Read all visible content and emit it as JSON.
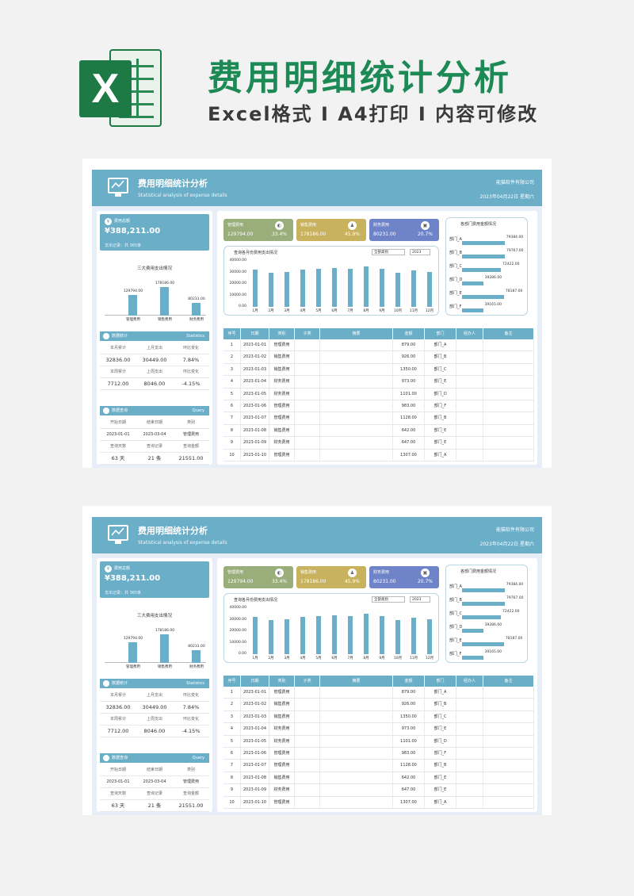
{
  "title": "费用明细统计分析",
  "subtitle": "Excel格式 I A4打印 I 内容可修改",
  "logo_text": "X",
  "sheet": {
    "title": "费用明细统计分析",
    "title_en": "Statistical analysis of expense details",
    "company": "能猫软件有限公司",
    "date": "2023年04月22日 星期六",
    "total": {
      "label": "费用总额",
      "value": "¥388,211.00",
      "note": "支出记录：共 365条"
    },
    "mini_chart": {
      "title": "三大费用支出情况",
      "chart_data": {
        "type": "bar",
        "categories": [
          "管理费用",
          "销售费用",
          "财务费用"
        ],
        "values": [
          129794.0,
          178186.0,
          80231.0
        ],
        "value_labels": [
          "129794.00",
          "178186.00",
          "80231.00"
        ]
      }
    },
    "stats": {
      "title": "数据统计",
      "title_en": "Statistics",
      "row1_labels": [
        "本月累计",
        "上月支出",
        "环比变化"
      ],
      "row1_values": [
        "32836.00",
        "30449.00",
        "7.84%"
      ],
      "row2_labels": [
        "本周累计",
        "上周支出",
        "环比变化"
      ],
      "row2_values": [
        "7712.00",
        "8046.00",
        "-4.15%"
      ]
    },
    "query": {
      "title": "数据查询",
      "title_en": "Query",
      "row1_labels": [
        "开始日期",
        "结束日期",
        "类别"
      ],
      "row1_values": [
        "2023-01-01",
        "2023-03-04",
        "管理费用"
      ],
      "row2_labels": [
        "查询天数",
        "查询记录",
        "查询金额"
      ],
      "row2_values": [
        "63 天",
        "21 条",
        "21551.00"
      ]
    },
    "kpis": [
      {
        "name": "管理费用",
        "value": "129794.00",
        "pct": "33.4%",
        "color": "#9aae7c"
      },
      {
        "name": "销售费用",
        "value": "178186.00",
        "pct": "45.9%",
        "color": "#c9b25e"
      },
      {
        "name": "财务费用",
        "value": "80231.00",
        "pct": "20.7%",
        "color": "#6f84c8"
      }
    ],
    "monthly_chart": {
      "title": "查询各月份费用支出情况",
      "category_select": "全部类别",
      "year_select": "2023",
      "chart_data": {
        "type": "bar",
        "categories": [
          "1月",
          "2月",
          "3月",
          "4月",
          "5月",
          "6月",
          "7月",
          "8月",
          "9月",
          "10月",
          "11月",
          "12月"
        ],
        "values": [
          32500,
          29500,
          30500,
          32500,
          33000,
          33500,
          33000,
          35000,
          33000,
          30000,
          31500,
          30500
        ],
        "yticks": [
          "40000.00",
          "30000.00",
          "20000.00",
          "10000.00",
          "0.00"
        ],
        "ylim": [
          0,
          40000
        ]
      }
    },
    "dept_chart": {
      "title": "各部门费用金额情况",
      "chart_data": {
        "type": "bar",
        "categories": [
          "部门_A",
          "部门_B",
          "部门_C",
          "部门_D",
          "部门_E",
          "部门_F"
        ],
        "values": [
          79384.0,
          79767.0,
          72422.0,
          39286.0,
          78187.0,
          39165.0
        ],
        "value_labels": [
          "79384.00",
          "79767.00",
          "72422.00",
          "39286.00",
          "78187.00",
          "39165.00"
        ]
      }
    },
    "table": {
      "headers": [
        "序号",
        "日期",
        "类别",
        "子类",
        "摘要",
        "金额",
        "部门",
        "经办人",
        "备注"
      ],
      "rows": [
        [
          "1",
          "2023-01-01",
          "管理费用",
          "",
          "",
          "879.00",
          "部门_A",
          "",
          ""
        ],
        [
          "2",
          "2023-01-02",
          "销售费用",
          "",
          "",
          "926.00",
          "部门_B",
          "",
          ""
        ],
        [
          "3",
          "2023-01-03",
          "销售费用",
          "",
          "",
          "1350.00",
          "部门_C",
          "",
          ""
        ],
        [
          "4",
          "2023-01-04",
          "财务费用",
          "",
          "",
          "973.00",
          "部门_E",
          "",
          ""
        ],
        [
          "5",
          "2023-01-05",
          "财务费用",
          "",
          "",
          "1101.00",
          "部门_D",
          "",
          ""
        ],
        [
          "6",
          "2023-01-06",
          "管理费用",
          "",
          "",
          "983.00",
          "部门_F",
          "",
          ""
        ],
        [
          "7",
          "2023-01-07",
          "管理费用",
          "",
          "",
          "1128.00",
          "部门_B",
          "",
          ""
        ],
        [
          "8",
          "2023-01-08",
          "销售费用",
          "",
          "",
          "642.00",
          "部门_E",
          "",
          ""
        ],
        [
          "9",
          "2023-01-09",
          "财务费用",
          "",
          "",
          "647.00",
          "部门_E",
          "",
          ""
        ],
        [
          "10",
          "2023-01-10",
          "管理费用",
          "",
          "",
          "1307.00",
          "部门_A",
          "",
          ""
        ]
      ]
    }
  }
}
